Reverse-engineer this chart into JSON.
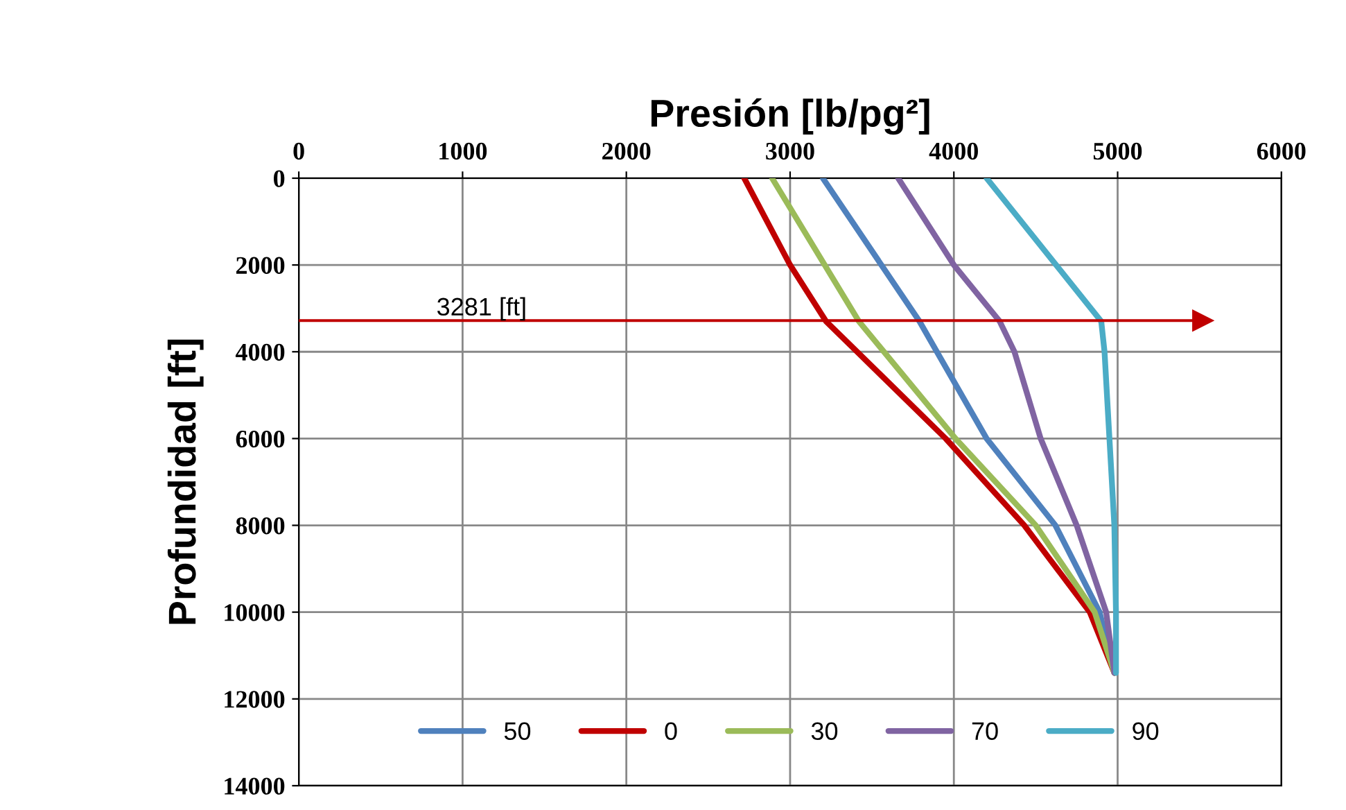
{
  "chart_data": {
    "type": "line",
    "xlabel": "Presión [lb/pg²]",
    "ylabel": "Profundidad [ft]",
    "xlim": [
      0,
      6000
    ],
    "xticks": [
      0,
      1000,
      2000,
      3000,
      4000,
      5000,
      6000
    ],
    "ylim": [
      14000,
      0
    ],
    "yticks": [
      0,
      2000,
      4000,
      6000,
      8000,
      10000,
      12000,
      14000
    ],
    "grid": true,
    "legend": "bottom",
    "line_style": "solid",
    "marker": "none",
    "series": [
      {
        "name": "50",
        "color": "#4f81bd",
        "x": [
          3200,
          3790,
          4200,
          4620,
          4890,
          4980
        ],
        "values": [
          0,
          3300,
          6000,
          8000,
          10000,
          11400
        ]
      },
      {
        "name": "0",
        "color": "#c00000",
        "x": [
          2720,
          3000,
          3220,
          3950,
          4430,
          4830,
          4980
        ],
        "values": [
          0,
          2000,
          3300,
          6000,
          8000,
          10000,
          11400
        ]
      },
      {
        "name": "30",
        "color": "#9bbb59",
        "x": [
          2890,
          3420,
          4010,
          4500,
          4860,
          4980
        ],
        "values": [
          0,
          3300,
          6000,
          8000,
          10000,
          11400
        ]
      },
      {
        "name": "70",
        "color": "#8064a2",
        "x": [
          3660,
          4000,
          4280,
          4370,
          4530,
          4750,
          4930,
          4980
        ],
        "values": [
          0,
          2000,
          3300,
          4000,
          6000,
          8000,
          10000,
          11400
        ]
      },
      {
        "name": "90",
        "color": "#4bacc6",
        "x": [
          4200,
          4900,
          4920,
          4950,
          4980,
          4990,
          4990
        ],
        "values": [
          0,
          3300,
          4000,
          6000,
          8000,
          10000,
          11400
        ]
      }
    ],
    "ref_lines": [
      {
        "axis": "y",
        "value": 3281,
        "label": "3281 [ft]",
        "color": "#c00000"
      }
    ]
  }
}
